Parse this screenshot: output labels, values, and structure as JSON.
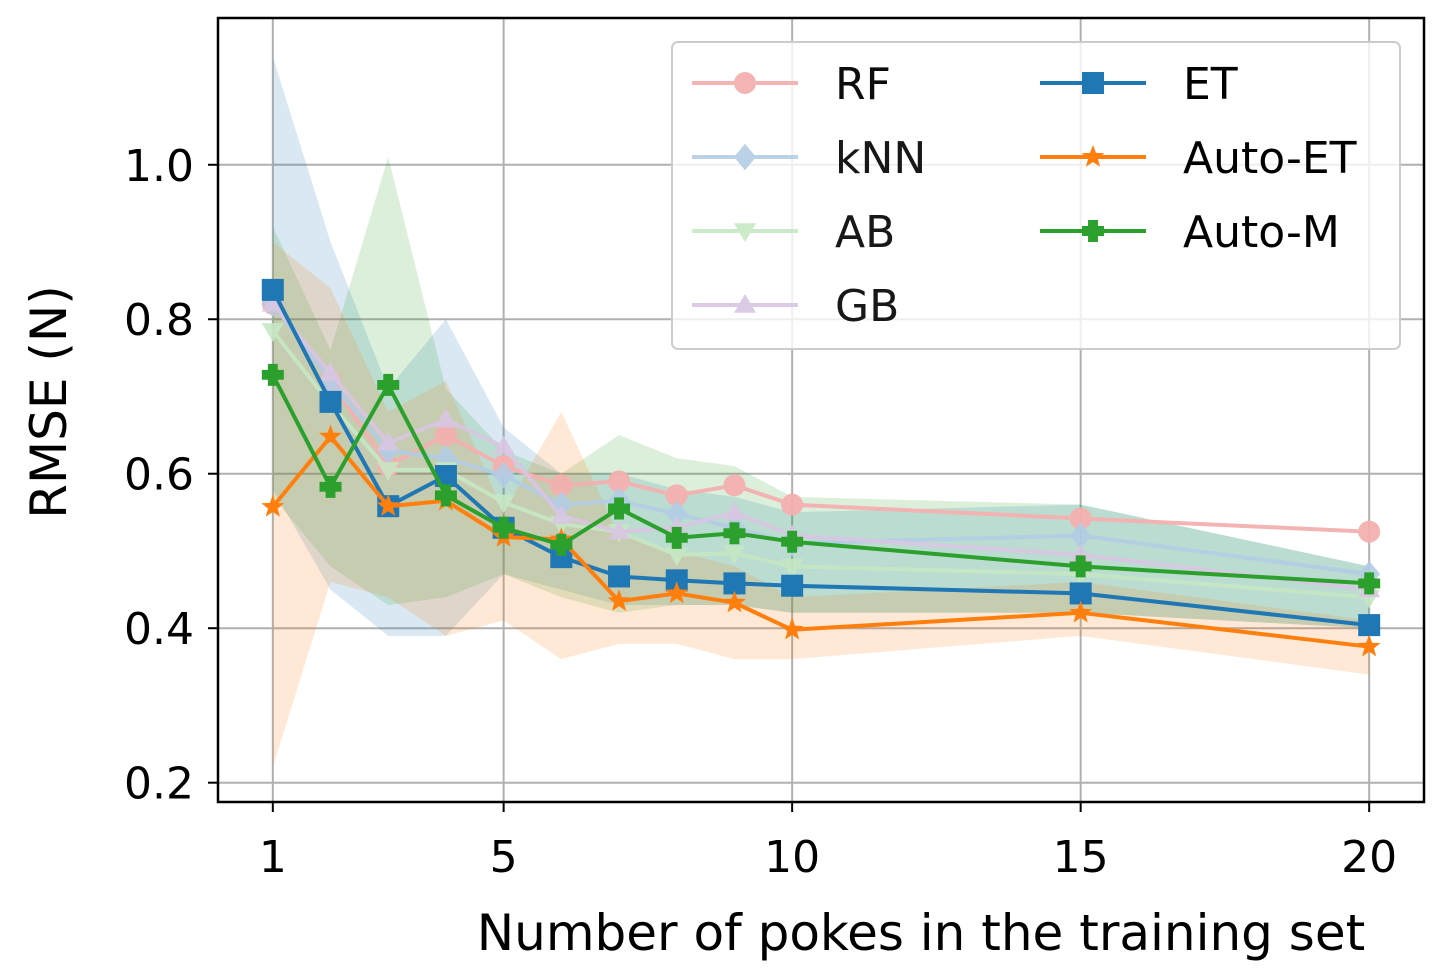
{
  "chart_data": {
    "type": "line",
    "xlabel": "Number of pokes in the training set",
    "ylabel": "RMSE (N)",
    "xlim": [
      0.05,
      20.95
    ],
    "ylim": [
      0.175,
      1.19
    ],
    "xticks": [
      1,
      5,
      10,
      15,
      20
    ],
    "xtick_labels": [
      "1",
      "5",
      "10",
      "15",
      "20"
    ],
    "yticks": [
      0.2,
      0.4,
      0.6,
      0.8,
      1.0
    ],
    "ytick_labels": [
      "0.2",
      "0.4",
      "0.6",
      "0.8",
      "1.0"
    ],
    "grid": true,
    "legend_position": "top-right",
    "legend_columns": 2,
    "x": [
      1,
      2,
      3,
      4,
      5,
      6,
      7,
      8,
      9,
      10,
      15,
      20
    ],
    "series": [
      {
        "name": "RF",
        "color": "#f4b0b0",
        "marker": "circle",
        "opacity": 0.95,
        "values": [
          0.82,
          0.72,
          0.61,
          0.65,
          0.61,
          0.585,
          0.59,
          0.572,
          0.585,
          0.56,
          0.542,
          0.525
        ],
        "band": null
      },
      {
        "name": "kNN",
        "color": "#b3cde6",
        "marker": "diamond",
        "opacity": 0.9,
        "values": [
          0.82,
          0.72,
          0.63,
          0.62,
          0.598,
          0.56,
          0.565,
          0.548,
          0.53,
          0.51,
          0.52,
          0.47
        ],
        "band": {
          "lower": [
            0.58,
            0.45,
            0.39,
            0.39,
            0.47,
            0.45,
            0.43,
            0.43,
            0.43,
            0.42,
            0.42,
            0.4
          ],
          "upper": [
            1.14,
            0.9,
            0.71,
            0.8,
            0.66,
            0.6,
            0.6,
            0.58,
            0.57,
            0.55,
            0.56,
            0.48
          ],
          "fill": "#1f77b4"
        }
      },
      {
        "name": "AB",
        "color": "#c6e8c3",
        "marker": "triangle-down",
        "opacity": 0.9,
        "values": [
          0.785,
          0.69,
          0.605,
          0.605,
          0.563,
          0.535,
          0.525,
          0.495,
          0.497,
          0.48,
          0.47,
          0.44
        ],
        "band": {
          "lower": [
            0.57,
            0.48,
            0.43,
            0.44,
            0.47,
            0.44,
            0.42,
            0.43,
            0.43,
            0.42,
            0.42,
            0.4
          ],
          "upper": [
            0.92,
            0.76,
            1.01,
            0.71,
            0.63,
            0.6,
            0.65,
            0.62,
            0.61,
            0.57,
            0.56,
            0.48
          ],
          "fill": "#2ca02c"
        }
      },
      {
        "name": "GB",
        "color": "#d9c6e3",
        "marker": "triangle-up",
        "opacity": 0.9,
        "values": [
          0.82,
          0.73,
          0.64,
          0.67,
          0.635,
          0.545,
          0.525,
          0.53,
          0.55,
          0.52,
          0.495,
          0.45
        ],
        "band": null
      },
      {
        "name": "ET",
        "color": "#1f77b4",
        "marker": "square",
        "opacity": 1,
        "values": [
          0.838,
          0.693,
          0.558,
          0.597,
          0.53,
          0.492,
          0.467,
          0.462,
          0.458,
          0.455,
          0.445,
          0.404
        ],
        "band": null
      },
      {
        "name": "Auto-ET",
        "color": "#ff7f0e",
        "marker": "star",
        "opacity": 1,
        "values": [
          0.557,
          0.648,
          0.558,
          0.565,
          0.518,
          0.515,
          0.435,
          0.445,
          0.433,
          0.398,
          0.42,
          0.376
        ],
        "band": {
          "lower": [
            0.22,
            0.46,
            0.44,
            0.39,
            0.41,
            0.36,
            0.38,
            0.38,
            0.36,
            0.36,
            0.39,
            0.34
          ],
          "upper": [
            0.9,
            0.84,
            0.68,
            0.72,
            0.55,
            0.68,
            0.52,
            0.5,
            0.48,
            0.44,
            0.46,
            0.41
          ],
          "fill": "#ff7f0e"
        }
      },
      {
        "name": "Auto-M",
        "color": "#2ca02c",
        "marker": "plus-filled",
        "opacity": 1,
        "values": [
          0.728,
          0.583,
          0.715,
          0.572,
          0.53,
          0.508,
          0.555,
          0.517,
          0.523,
          0.512,
          0.48,
          0.458
        ],
        "band": null
      }
    ]
  }
}
